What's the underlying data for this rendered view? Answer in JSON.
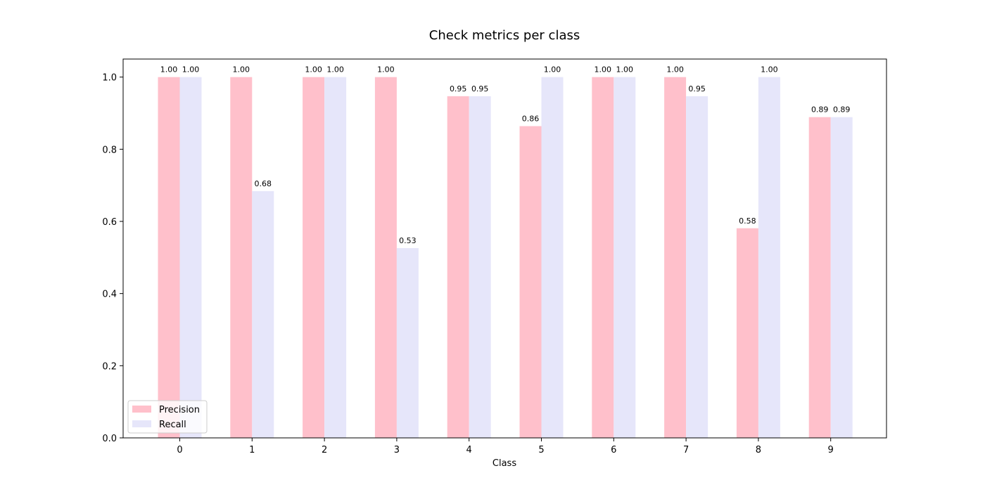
{
  "chart_data": {
    "type": "bar",
    "title": "Check metrics per class",
    "xlabel": "Class",
    "ylabel": "",
    "categories": [
      "0",
      "1",
      "2",
      "3",
      "4",
      "5",
      "6",
      "7",
      "8",
      "9"
    ],
    "series": [
      {
        "name": "Precision",
        "color": "#ffc0cb",
        "values": [
          1.0,
          1.0,
          1.0,
          1.0,
          0.947,
          0.864,
          1.0,
          1.0,
          0.581,
          0.889
        ],
        "labels": [
          "1.00",
          "1.00",
          "1.00",
          "1.00",
          "0.95",
          "0.86",
          "1.00",
          "1.00",
          "0.58",
          "0.89"
        ]
      },
      {
        "name": "Recall",
        "color": "#e6e6fa",
        "values": [
          1.0,
          0.684,
          1.0,
          0.526,
          0.947,
          1.0,
          1.0,
          0.947,
          1.0,
          0.889
        ],
        "labels": [
          "1.00",
          "0.68",
          "1.00",
          "0.53",
          "0.95",
          "1.00",
          "1.00",
          "0.95",
          "1.00",
          "0.89"
        ]
      }
    ],
    "ylim": [
      0,
      1.05
    ],
    "yticks": [
      0.0,
      0.2,
      0.4,
      0.6,
      0.8,
      1.0
    ],
    "ytick_labels": [
      "0.0",
      "0.2",
      "0.4",
      "0.6",
      "0.8",
      "1.0"
    ],
    "grid": false,
    "legend": "lower-left"
  }
}
